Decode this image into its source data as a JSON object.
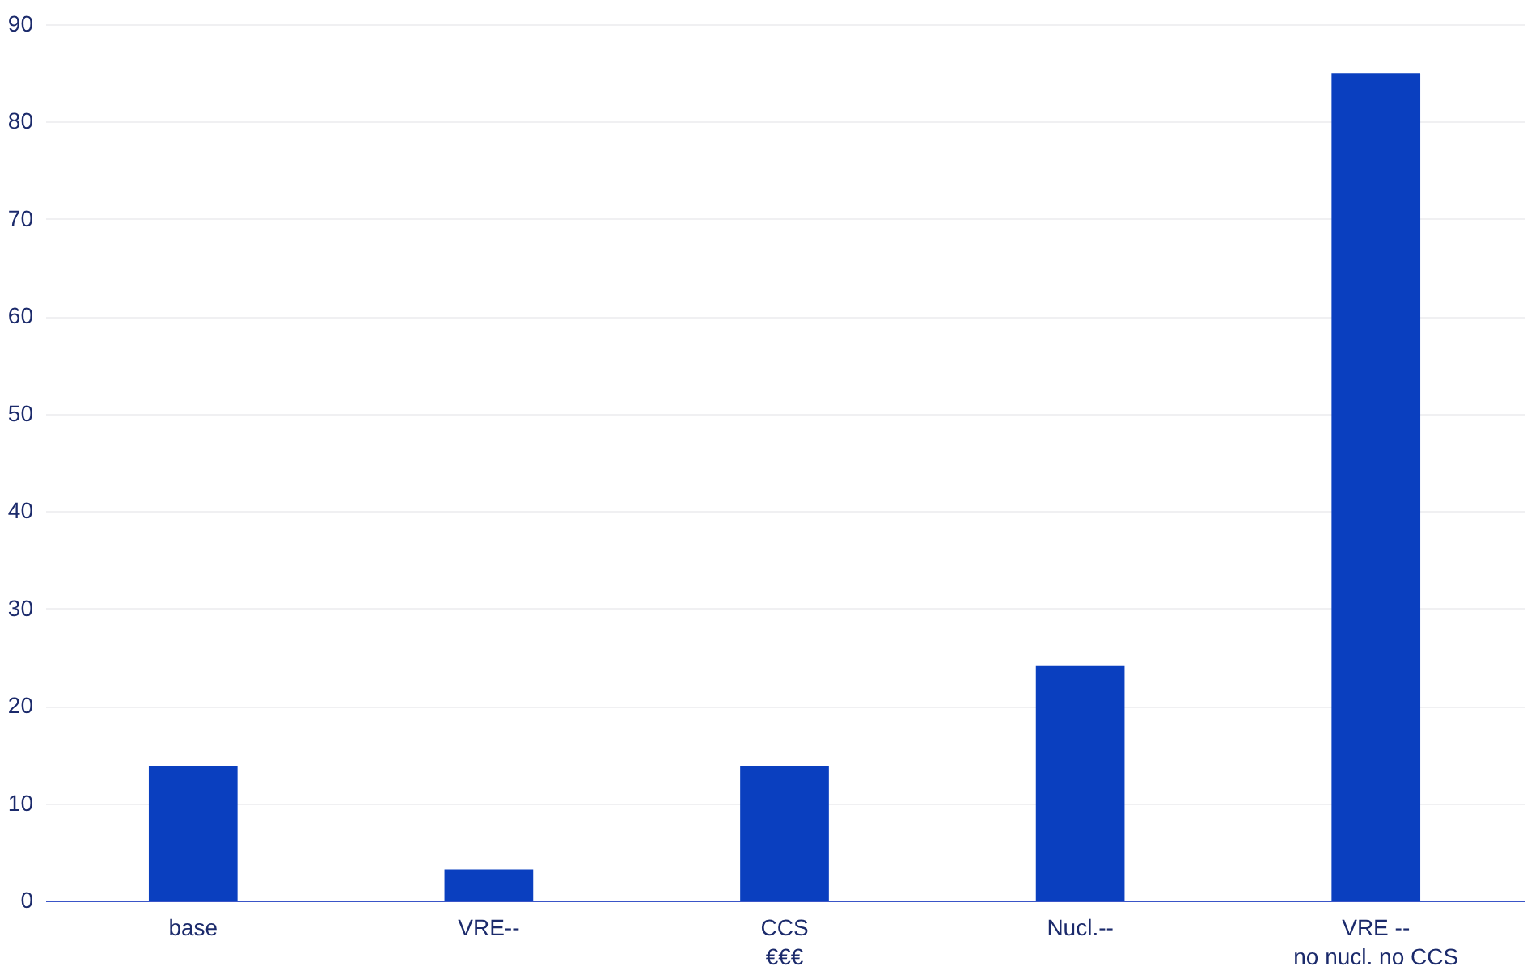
{
  "chart_data": {
    "type": "bar",
    "categories": [
      "base",
      "VRE--",
      "CCS\n€€€",
      "Nucl.--",
      "VRE --\nno nucl. no CCS"
    ],
    "values": [
      13.8,
      3.2,
      13.8,
      24.1,
      85
    ],
    "color": "#0a3fbf",
    "ylim": [
      0,
      90
    ],
    "yticks": [
      0,
      10,
      20,
      30,
      40,
      50,
      60,
      70,
      80,
      90
    ],
    "grid": "y"
  }
}
